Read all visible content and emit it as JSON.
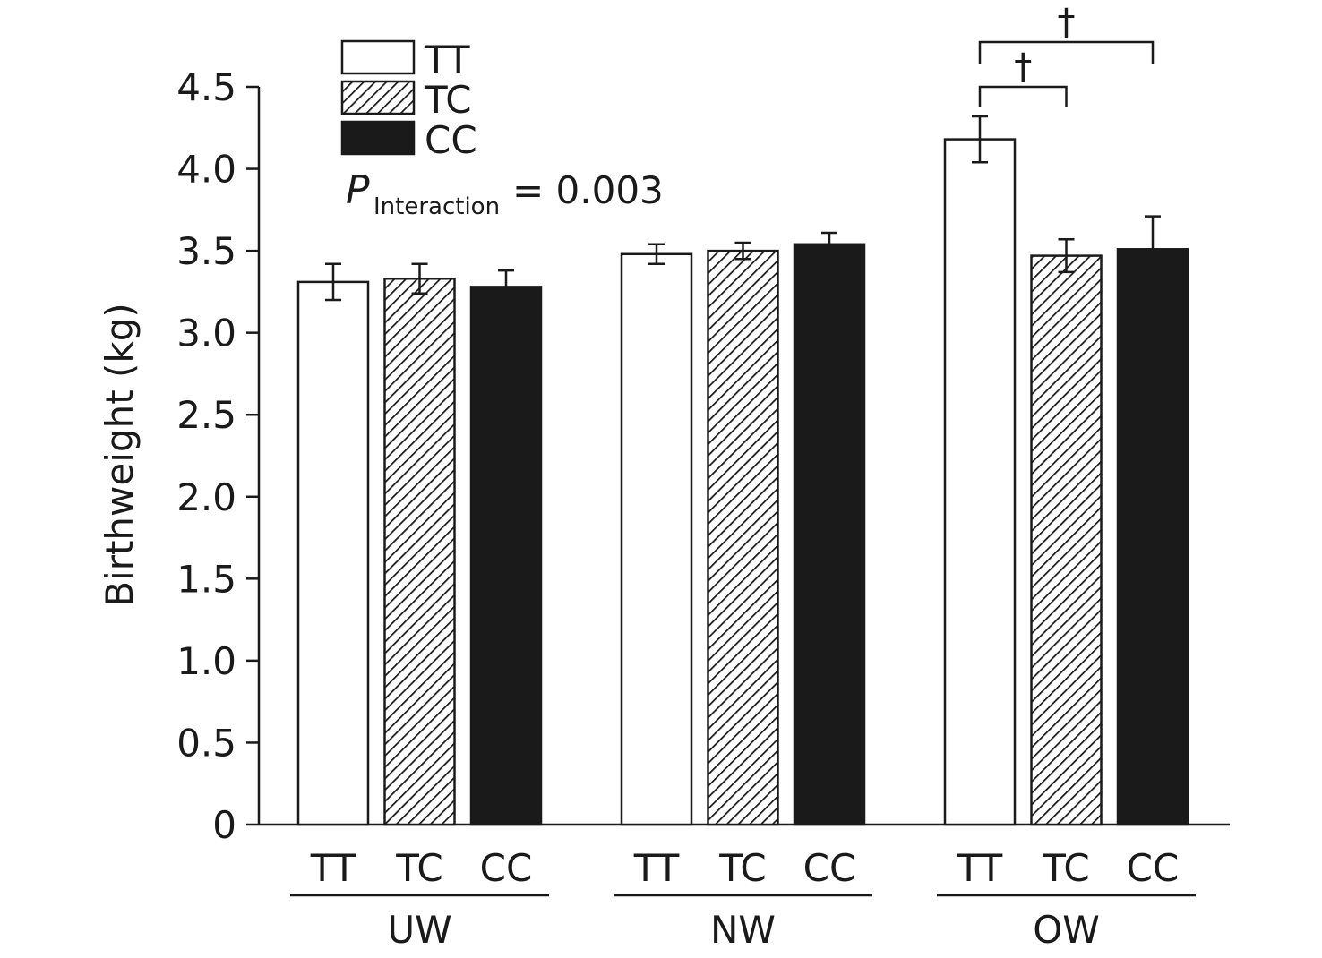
{
  "chart_data": {
    "type": "bar",
    "ylabel": "Birthweight (kg)",
    "ylim": [
      0,
      4.5
    ],
    "yticks": [
      "0",
      "0.5",
      "1.0",
      "1.5",
      "2.0",
      "2.5",
      "3.0",
      "3.5",
      "4.0",
      "4.5"
    ],
    "groups": [
      "UW",
      "NW",
      "OW"
    ],
    "categories": [
      "TT",
      "TC",
      "CC"
    ],
    "series": [
      {
        "name": "TT",
        "values": [
          3.31,
          3.48,
          4.18
        ],
        "errors": [
          0.11,
          0.06,
          0.14
        ],
        "fill": "#ffffff"
      },
      {
        "name": "TC",
        "values": [
          3.33,
          3.5,
          3.47
        ],
        "errors": [
          0.09,
          0.05,
          0.1
        ],
        "fill": "hatch"
      },
      {
        "name": "CC",
        "values": [
          3.28,
          3.54,
          3.51
        ],
        "errors": [
          0.1,
          0.07,
          0.2
        ],
        "fill": "#1a1a1a"
      }
    ],
    "legend": {
      "position": "top-left",
      "items": [
        "TT",
        "TC",
        "CC"
      ]
    },
    "annotation": {
      "symbol": "P",
      "subscript": "Interaction",
      "text": "= 0.003"
    },
    "significance": [
      {
        "group": "OW",
        "from": "TT",
        "to": "TC",
        "mark": "†"
      },
      {
        "group": "OW",
        "from": "TT",
        "to": "CC",
        "mark": "†"
      }
    ],
    "colors": {
      "ink": "#1a1a1a",
      "hatch": "#1a1a1a",
      "background": "#ffffff"
    }
  }
}
